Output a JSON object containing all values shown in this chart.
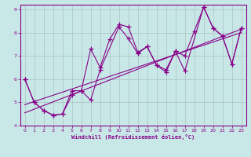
{
  "title": "",
  "xlabel": "Windchill (Refroidissement éolien,°C)",
  "ylabel": "",
  "bg_color": "#c8e8e8",
  "grid_color": "#b0c8c8",
  "line_color": "#880088",
  "xlim": [
    -0.5,
    23.5
  ],
  "ylim": [
    4,
    9.2
  ],
  "yticks": [
    4,
    5,
    6,
    7,
    8,
    9
  ],
  "xticks": [
    0,
    1,
    2,
    3,
    4,
    5,
    6,
    7,
    8,
    9,
    10,
    11,
    12,
    13,
    14,
    15,
    16,
    17,
    18,
    19,
    20,
    21,
    22,
    23
  ],
  "series1_x": [
    0,
    1,
    2,
    3,
    4,
    5,
    6,
    7,
    8,
    9,
    10,
    11,
    12,
    13,
    14,
    15,
    16,
    17,
    18,
    19,
    20,
    21,
    22,
    23
  ],
  "series1_y": [
    6.0,
    5.0,
    4.65,
    4.45,
    4.5,
    5.5,
    5.5,
    7.3,
    6.5,
    7.7,
    8.35,
    8.25,
    7.15,
    7.4,
    6.6,
    6.3,
    7.2,
    7.0,
    8.05,
    9.1,
    8.2,
    7.85,
    6.65,
    8.2
  ],
  "series2_x": [
    0,
    1,
    2,
    3,
    4,
    5,
    6,
    7,
    8,
    10,
    11,
    12,
    13,
    14,
    15,
    16,
    17,
    19,
    20,
    21,
    22,
    23
  ],
  "series2_y": [
    6.0,
    5.0,
    4.65,
    4.45,
    4.5,
    5.3,
    5.5,
    5.1,
    6.4,
    8.25,
    7.75,
    7.1,
    7.4,
    6.6,
    6.4,
    7.2,
    6.35,
    9.1,
    8.2,
    7.85,
    6.65,
    8.2
  ],
  "reg_line1": {
    "x": [
      0,
      23
    ],
    "y": [
      4.55,
      8.15
    ]
  },
  "reg_line2": {
    "x": [
      0,
      23
    ],
    "y": [
      4.9,
      8.0
    ]
  }
}
